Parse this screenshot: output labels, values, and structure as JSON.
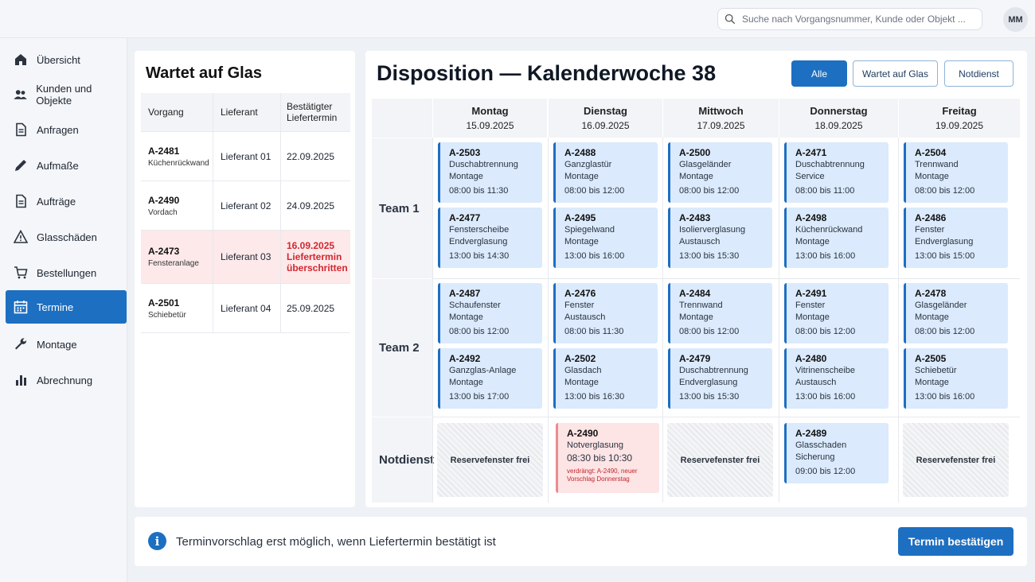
{
  "header": {
    "search_placeholder": "Suche nach Vorgangsnummer, Kunde oder Objekt ...",
    "avatar_initials": "MM"
  },
  "sidebar": {
    "items": [
      {
        "label": "Übersicht",
        "icon": "home-icon"
      },
      {
        "label": "Kunden und Objekte",
        "icon": "users-icon"
      },
      {
        "label": "Anfragen",
        "icon": "document-icon"
      },
      {
        "label": "Aufmaße",
        "icon": "pencil-icon"
      },
      {
        "label": "Aufträge",
        "icon": "document-icon"
      },
      {
        "label": "Glasschäden",
        "icon": "warning-icon"
      },
      {
        "label": "Bestellungen",
        "icon": "cart-icon"
      },
      {
        "label": "Termine",
        "icon": "calendar-icon",
        "active": true
      },
      {
        "label": "Montage",
        "icon": "wrench-icon"
      },
      {
        "label": "Abrechnung",
        "icon": "bar-chart-icon"
      }
    ]
  },
  "wartet": {
    "title": "Wartet auf Glas",
    "columns": [
      "Vorgang",
      "Lieferant",
      "Bestätigter Liefertermin"
    ],
    "rows": [
      {
        "id": "A-2481",
        "sub": "Küchenrückwand",
        "supplier": "Lieferant 01",
        "date": "22.09.2025"
      },
      {
        "id": "A-2490",
        "sub": "Vordach",
        "supplier": "Lieferant 02",
        "date": "24.09.2025"
      },
      {
        "id": "A-2473",
        "sub": "Fensteranlage",
        "supplier": "Lieferant 03",
        "date": "16.09.2025 Liefertermin überschritten",
        "alert": true
      },
      {
        "id": "A-2501",
        "sub": "Schiebetür",
        "supplier": "Lieferant 04",
        "date": "25.09.2025"
      }
    ]
  },
  "dispo": {
    "title": "Disposition — Kalenderwoche 38",
    "filters": [
      "Alle",
      "Wartet auf Glas",
      "Notdienst"
    ],
    "days": [
      {
        "name": "Montag",
        "date": "15.09.2025"
      },
      {
        "name": "Dienstag",
        "date": "16.09.2025"
      },
      {
        "name": "Mittwoch",
        "date": "17.09.2025"
      },
      {
        "name": "Donnerstag",
        "date": "18.09.2025"
      },
      {
        "name": "Freitag",
        "date": "19.09.2025"
      }
    ],
    "rows": [
      "Team 1",
      "Team 2",
      "Notdienst"
    ],
    "team1": [
      [
        {
          "id": "A-2503",
          "l1": "Duschabtrennung",
          "l2": "Montage",
          "time": "08:00 bis 11:30"
        },
        {
          "id": "A-2477",
          "l1": "Fensterscheibe",
          "l2": "Endverglasung",
          "time": "13:00 bis 14:30"
        }
      ],
      [
        {
          "id": "A-2488",
          "l1": "Ganzglastür",
          "l2": "Montage",
          "time": "08:00 bis 12:00"
        },
        {
          "id": "A-2495",
          "l1": "Spiegelwand",
          "l2": "Montage",
          "time": "13:00 bis 16:00"
        }
      ],
      [
        {
          "id": "A-2500",
          "l1": "Glasgeländer",
          "l2": "Montage",
          "time": "08:00 bis 12:00"
        },
        {
          "id": "A-2483",
          "l1": "Isolierverglasung",
          "l2": "Austausch",
          "time": "13:00 bis 15:30"
        }
      ],
      [
        {
          "id": "A-2471",
          "l1": "Duschabtrennung",
          "l2": "Service",
          "time": "08:00 bis 11:00"
        },
        {
          "id": "A-2498",
          "l1": "Küchenrückwand",
          "l2": "Montage",
          "time": "13:00 bis 16:00"
        }
      ],
      [
        {
          "id": "A-2504",
          "l1": "Trennwand",
          "l2": "Montage",
          "time": "08:00 bis 12:00"
        },
        {
          "id": "A-2486",
          "l1": "Fenster",
          "l2": "Endverglasung",
          "time": "13:00 bis 15:00"
        }
      ]
    ],
    "team2": [
      [
        {
          "id": "A-2487",
          "l1": "Schaufenster",
          "l2": "Montage",
          "time": "08:00 bis 12:00"
        },
        {
          "id": "A-2492",
          "l1": "Ganzglas-Anlage",
          "l2": "Montage",
          "time": "13:00 bis 17:00"
        }
      ],
      [
        {
          "id": "A-2476",
          "l1": "Fenster",
          "l2": "Austausch",
          "time": "08:00 bis 11:30"
        },
        {
          "id": "A-2502",
          "l1": "Glasdach",
          "l2": "Montage",
          "time": "13:00 bis 16:30"
        }
      ],
      [
        {
          "id": "A-2484",
          "l1": "Trennwand",
          "l2": "Montage",
          "time": "08:00 bis 12:00"
        },
        {
          "id": "A-2479",
          "l1": "Duschabtrennung",
          "l2": "Endverglasung",
          "time": "13:00 bis 15:30"
        }
      ],
      [
        {
          "id": "A-2491",
          "l1": "Fenster",
          "l2": "Montage",
          "time": "08:00 bis 12:00"
        },
        {
          "id": "A-2480",
          "l1": "Vitrinenscheibe",
          "l2": "Austausch",
          "time": "13:00 bis 16:00"
        }
      ],
      [
        {
          "id": "A-2478",
          "l1": "Glasgeländer",
          "l2": "Montage",
          "time": "08:00 bis 12:00"
        },
        {
          "id": "A-2505",
          "l1": "Schiebetür",
          "l2": "Montage",
          "time": "13:00 bis 16:00"
        }
      ]
    ],
    "notdienst": {
      "reserve_label": "Reservefenster frei",
      "tue": {
        "id": "A-2490",
        "l1": "Notverglasung",
        "time": "08:30 bis 10:30",
        "note": "verdrängt: A-2490, neuer Vorschlag Donnerstag"
      },
      "thu": {
        "id": "A-2489",
        "l1": "Glasschaden",
        "l2": "Sicherung",
        "time": "09:00 bis 12:00"
      }
    }
  },
  "bottom": {
    "info": "Terminvorschlag erst möglich, wenn Liefertermin bestätigt ist",
    "confirm_label": "Termin bestätigen"
  },
  "colors": {
    "accent": "#1d6fc1",
    "alert": "#d1282f"
  }
}
